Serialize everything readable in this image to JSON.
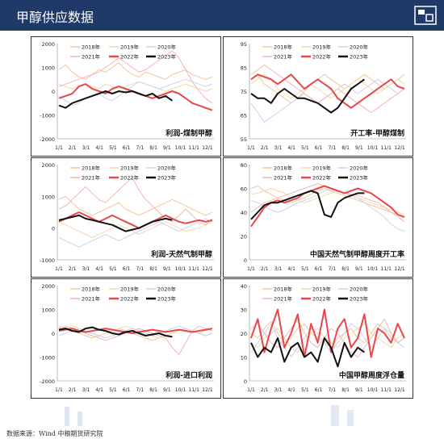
{
  "page": {
    "title": "甲醇供应数据",
    "source": "数据来源：Wind 中粮期货研究院"
  },
  "colors": {
    "header_bg": "#1f3a68",
    "c2018": "#f2c69a",
    "c2019": "#f4d9a8",
    "c2020": "#c9d3f0",
    "c2021": "#f3b5b5",
    "c2022": "#e8474b",
    "c2023": "#111111"
  },
  "legend_years": [
    "2018年",
    "2019年",
    "2020年",
    "2021年",
    "2022年",
    "2023年"
  ],
  "x_ticks": [
    "1/1",
    "2/1",
    "3/1",
    "4/1",
    "5/1",
    "6/1",
    "7/1",
    "8/1",
    "9/1",
    "10/1",
    "11/1",
    "12/1"
  ],
  "chart_data": [
    {
      "type": "line",
      "title": "利润-煤制甲醇",
      "ylim": [
        -2000,
        2000
      ],
      "yticks": [
        "2000",
        "1000",
        "0",
        "-1000",
        "-2000"
      ],
      "series": [
        {
          "name": "2018年",
          "values": [
            900,
            1100,
            800,
            600,
            500,
            700,
            900,
            800,
            1000,
            1200,
            900,
            700,
            600,
            800,
            700,
            600,
            500,
            700,
            800,
            900,
            700,
            600,
            500,
            600
          ]
        },
        {
          "name": "2019年",
          "values": [
            300,
            200,
            100,
            200,
            300,
            200,
            100,
            300,
            200,
            100,
            200,
            300,
            400,
            300,
            200,
            100,
            0,
            100,
            200,
            300,
            200,
            100,
            0,
            100
          ]
        },
        {
          "name": "2020年",
          "values": [
            -200,
            -400,
            -600,
            -500,
            -300,
            -200,
            -100,
            -300,
            -400,
            -200,
            0,
            200,
            400,
            300,
            200,
            100,
            200,
            300,
            400,
            500,
            400,
            300,
            200,
            300
          ]
        },
        {
          "name": "2021年",
          "values": [
            200,
            300,
            400,
            500,
            600,
            700,
            800,
            1000,
            1200,
            1400,
            1200,
            1000,
            800,
            900,
            1100,
            1300,
            1500,
            1700,
            1400,
            900,
            400,
            0,
            -300,
            -500
          ]
        },
        {
          "name": "2022年",
          "values": [
            -300,
            -200,
            -100,
            200,
            300,
            100,
            0,
            -100,
            100,
            200,
            100,
            0,
            -100,
            -200,
            -300,
            -200,
            -100,
            0,
            -100,
            -300,
            -500,
            -600,
            -700,
            -800
          ]
        },
        {
          "name": "2023年",
          "values": [
            -600,
            -700,
            -500,
            -400,
            -300,
            -200,
            -100,
            0,
            -100,
            0,
            -50,
            0,
            -100,
            -200,
            -100,
            -300,
            -200,
            -400
          ]
        }
      ]
    },
    {
      "type": "line",
      "title": "开工率-甲醇煤制",
      "ylim": [
        55,
        95
      ],
      "yticks": [
        "95",
        "85",
        "75",
        "65",
        "55"
      ],
      "series": [
        {
          "name": "2018年",
          "values": [
            80,
            82,
            78,
            76,
            74,
            72,
            70,
            72,
            75,
            78,
            80,
            82,
            80,
            78,
            76,
            78,
            80,
            82,
            80,
            78,
            76,
            78,
            80,
            82
          ]
        },
        {
          "name": "2019年",
          "values": [
            78,
            80,
            82,
            80,
            76,
            74,
            72,
            74,
            76,
            78,
            76,
            74,
            72,
            74,
            76,
            78,
            80,
            78,
            76,
            74,
            76,
            78,
            80,
            78
          ]
        },
        {
          "name": "2020年",
          "values": [
            70,
            66,
            62,
            64,
            66,
            68,
            70,
            72,
            74,
            72,
            70,
            72,
            74,
            76,
            78,
            76,
            74,
            76,
            78,
            80,
            78,
            76,
            74,
            76
          ]
        },
        {
          "name": "2021年",
          "values": [
            82,
            84,
            86,
            84,
            82,
            80,
            78,
            76,
            74,
            72,
            70,
            72,
            74,
            76,
            74,
            72,
            70,
            68,
            66,
            68,
            70,
            72,
            74,
            76
          ]
        },
        {
          "name": "2022年",
          "values": [
            80,
            82,
            81,
            80,
            78,
            80,
            82,
            79,
            76,
            78,
            80,
            78,
            76,
            72,
            70,
            68,
            70,
            72,
            74,
            76,
            78,
            80,
            77,
            76
          ]
        },
        {
          "name": "2023年",
          "values": [
            74,
            72,
            72,
            70,
            74,
            76,
            74,
            72,
            72,
            71,
            70,
            68,
            66,
            68,
            72,
            76,
            78,
            80
          ]
        }
      ]
    },
    {
      "type": "line",
      "title": "利润-天然气制甲醇",
      "ylim": [
        -1000,
        2000
      ],
      "yticks": [
        "2000",
        "1000",
        "0",
        "-1000"
      ],
      "series": [
        {
          "name": "2018年",
          "values": [
            900,
            1000,
            800,
            600,
            500,
            400,
            500,
            600,
            700,
            800,
            600,
            500,
            400,
            500,
            600,
            700,
            800,
            900,
            800,
            700,
            600,
            500,
            400,
            500
          ]
        },
        {
          "name": "2019年",
          "values": [
            200,
            100,
            0,
            -100,
            -200,
            -300,
            -200,
            -100,
            0,
            100,
            0,
            -100,
            -200,
            -100,
            0,
            100,
            200,
            100,
            0,
            -100,
            -50,
            0,
            100,
            200
          ]
        },
        {
          "name": "2020年",
          "values": [
            -300,
            -400,
            -500,
            -600,
            -500,
            -400,
            -300,
            -200,
            -300,
            -400,
            -300,
            -200,
            -100,
            0,
            100,
            200,
            100,
            0,
            -100,
            0,
            100,
            200,
            300,
            200
          ]
        },
        {
          "name": "2021年",
          "values": [
            600,
            700,
            900,
            1100,
            1300,
            1100,
            900,
            800,
            1000,
            1200,
            1400,
            1600,
            1200,
            900,
            700,
            500,
            300,
            200,
            400,
            600,
            400,
            200,
            100,
            300
          ]
        },
        {
          "name": "2022年",
          "values": [
            200,
            300,
            400,
            500,
            400,
            300,
            200,
            300,
            400,
            300,
            200,
            100,
            0,
            100,
            200,
            300,
            400,
            300,
            200,
            150,
            200,
            250,
            200,
            250
          ]
        },
        {
          "name": "2023年",
          "values": [
            250,
            300,
            350,
            400,
            300,
            250,
            200,
            150,
            100,
            0,
            -100,
            -50,
            0,
            100,
            200,
            250,
            300,
            250
          ]
        }
      ]
    },
    {
      "type": "line",
      "title": "中国天然气制甲醇周度开工率",
      "ylim": [
        0,
        80
      ],
      "yticks": [
        "80",
        "60",
        "40",
        "20",
        "0"
      ],
      "series": [
        {
          "name": "2018年",
          "values": [
            60,
            62,
            58,
            55,
            52,
            50,
            48,
            50,
            52,
            55,
            58,
            60,
            58,
            56,
            54,
            52,
            50,
            48,
            46,
            44,
            42,
            40,
            38,
            36
          ]
        },
        {
          "name": "2019年",
          "values": [
            55,
            56,
            58,
            60,
            58,
            56,
            52,
            50,
            48,
            50,
            52,
            54,
            56,
            58,
            56,
            54,
            52,
            50,
            48,
            46,
            44,
            42,
            40,
            38
          ]
        },
        {
          "name": "2020年",
          "values": [
            50,
            48,
            45,
            42,
            40,
            42,
            45,
            48,
            50,
            52,
            55,
            58,
            60,
            58,
            56,
            54,
            52,
            48,
            44,
            40,
            36,
            30,
            26,
            24
          ]
        },
        {
          "name": "2021年",
          "values": [
            40,
            44,
            48,
            50,
            52,
            54,
            56,
            58,
            60,
            62,
            64,
            62,
            60,
            58,
            56,
            55,
            54,
            52,
            50,
            48,
            44,
            40,
            36,
            32
          ]
        },
        {
          "name": "2022年",
          "values": [
            28,
            36,
            44,
            48,
            50,
            48,
            50,
            52,
            56,
            58,
            60,
            62,
            60,
            58,
            56,
            58,
            60,
            58,
            56,
            52,
            48,
            44,
            38,
            36
          ]
        },
        {
          "name": "2023年",
          "values": [
            34,
            40,
            46,
            48,
            48,
            50,
            52,
            54,
            56,
            58,
            56,
            38,
            36,
            48,
            52,
            54,
            56,
            56
          ]
        }
      ]
    },
    {
      "type": "line",
      "title": "利润-进口利润",
      "ylim": [
        -2000,
        2000
      ],
      "yticks": [
        "2000",
        "1000",
        "0",
        "-1000",
        "-2000"
      ],
      "series": [
        {
          "name": "2018年",
          "values": [
            300,
            200,
            100,
            0,
            -100,
            -200,
            -100,
            0,
            100,
            200,
            100,
            0,
            -100,
            -200,
            -300,
            -200,
            -100,
            0,
            100,
            200,
            100,
            0,
            -100,
            0
          ]
        },
        {
          "name": "2019年",
          "values": [
            100,
            200,
            300,
            200,
            100,
            0,
            -100,
            0,
            100,
            200,
            300,
            200,
            100,
            0,
            -100,
            -200,
            -100,
            0,
            100,
            200,
            100,
            0,
            100,
            200
          ]
        },
        {
          "name": "2020年",
          "values": [
            -100,
            0,
            100,
            200,
            100,
            0,
            -100,
            -200,
            -100,
            0,
            100,
            200,
            100,
            0,
            -100,
            0,
            100,
            200,
            300,
            200,
            100,
            0,
            -100,
            0
          ]
        },
        {
          "name": "2021年",
          "values": [
            200,
            300,
            200,
            100,
            0,
            -100,
            -200,
            -300,
            -200,
            -100,
            0,
            100,
            200,
            100,
            0,
            -100,
            -200,
            -600,
            -900,
            -400,
            100,
            300,
            200,
            100
          ]
        },
        {
          "name": "2022年",
          "values": [
            100,
            150,
            200,
            100,
            50,
            100,
            150,
            200,
            150,
            100,
            50,
            0,
            50,
            100,
            150,
            100,
            50,
            100,
            150,
            100,
            50,
            100,
            150,
            200
          ]
        },
        {
          "name": "2023年",
          "values": [
            150,
            200,
            100,
            50,
            200,
            250,
            150,
            100,
            0,
            -50,
            50,
            100,
            0,
            -100,
            -50,
            0,
            -100,
            -150
          ]
        }
      ]
    },
    {
      "type": "line",
      "title": "中国甲醇周度浮仓量",
      "ylim": [
        0,
        40
      ],
      "yticks": [
        "40",
        "30",
        "20",
        "10",
        "0"
      ],
      "series": [
        {
          "name": "2018年",
          "values": [
            20,
            18,
            22,
            25,
            20,
            16,
            18,
            22,
            24,
            20,
            18,
            16,
            14,
            18,
            20,
            22,
            18,
            16,
            20,
            24,
            22,
            18,
            16,
            18
          ]
        },
        {
          "name": "2019年",
          "values": [
            16,
            14,
            18,
            20,
            22,
            18,
            14,
            12,
            16,
            20,
            22,
            18,
            16,
            14,
            18,
            20,
            22,
            24,
            20,
            18,
            16,
            14,
            18,
            20
          ]
        },
        {
          "name": "2020年",
          "values": [
            12,
            16,
            20,
            24,
            18,
            14,
            10,
            14,
            18,
            22,
            20,
            16,
            12,
            16,
            20,
            24,
            22,
            18,
            14,
            18,
            22,
            20,
            16,
            14
          ]
        },
        {
          "name": "2021年",
          "values": [
            22,
            24,
            20,
            16,
            14,
            18,
            22,
            26,
            20,
            16,
            14,
            18,
            22,
            20,
            16,
            12,
            10,
            14,
            18,
            22,
            26,
            20,
            16,
            18
          ]
        },
        {
          "name": "2022年",
          "values": [
            18,
            26,
            12,
            22,
            30,
            14,
            20,
            28,
            10,
            24,
            16,
            30,
            12,
            22,
            26,
            14,
            18,
            28,
            10,
            22,
            20,
            16,
            24,
            18
          ]
        },
        {
          "name": "2023年",
          "values": [
            16,
            10,
            14,
            12,
            18,
            8,
            14,
            16,
            10,
            12,
            8,
            18,
            14,
            6,
            16,
            10,
            14,
            12
          ]
        }
      ]
    }
  ]
}
